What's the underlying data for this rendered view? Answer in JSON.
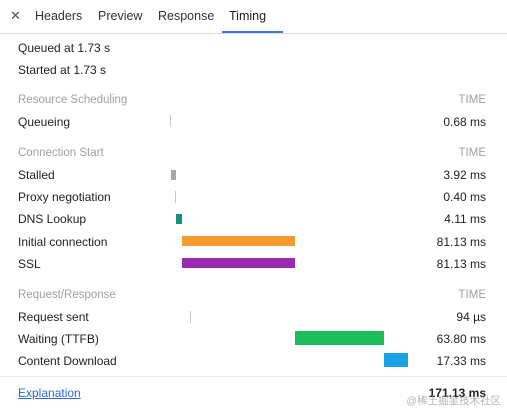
{
  "tabs": [
    {
      "label": "Headers"
    },
    {
      "label": "Preview"
    },
    {
      "label": "Response"
    },
    {
      "label": "Timing"
    }
  ],
  "active_tab": "Timing",
  "queued": "Queued at 1.73 s",
  "started": "Started at 1.73 s",
  "sections": {
    "scheduling": {
      "title": "Resource Scheduling",
      "time_label": "TIME",
      "rows": [
        {
          "label": "Queueing",
          "value": "0.68 ms"
        }
      ]
    },
    "connection": {
      "title": "Connection Start",
      "time_label": "TIME",
      "rows": [
        {
          "label": "Stalled",
          "value": "3.92 ms",
          "color": "#a8a8a8"
        },
        {
          "label": "Proxy negotiation",
          "value": "0.40 ms"
        },
        {
          "label": "DNS Lookup",
          "value": "4.11 ms",
          "color": "#14907d"
        },
        {
          "label": "Initial connection",
          "value": "81.13 ms",
          "color": "#f99b30"
        },
        {
          "label": "SSL",
          "value": "81.13 ms",
          "color": "#9a2ab0"
        }
      ]
    },
    "request": {
      "title": "Request/Response",
      "time_label": "TIME",
      "rows": [
        {
          "label": "Request sent",
          "value": "94 µs"
        },
        {
          "label": "Waiting (TTFB)",
          "value": "63.80 ms",
          "color": "#1cbd5c"
        },
        {
          "label": "Content Download",
          "value": "17.33 ms",
          "color": "#1ba2e6"
        }
      ]
    }
  },
  "explanation_label": "Explanation",
  "total": "171.13 ms",
  "watermark": "@稀土掘金技术社区"
}
